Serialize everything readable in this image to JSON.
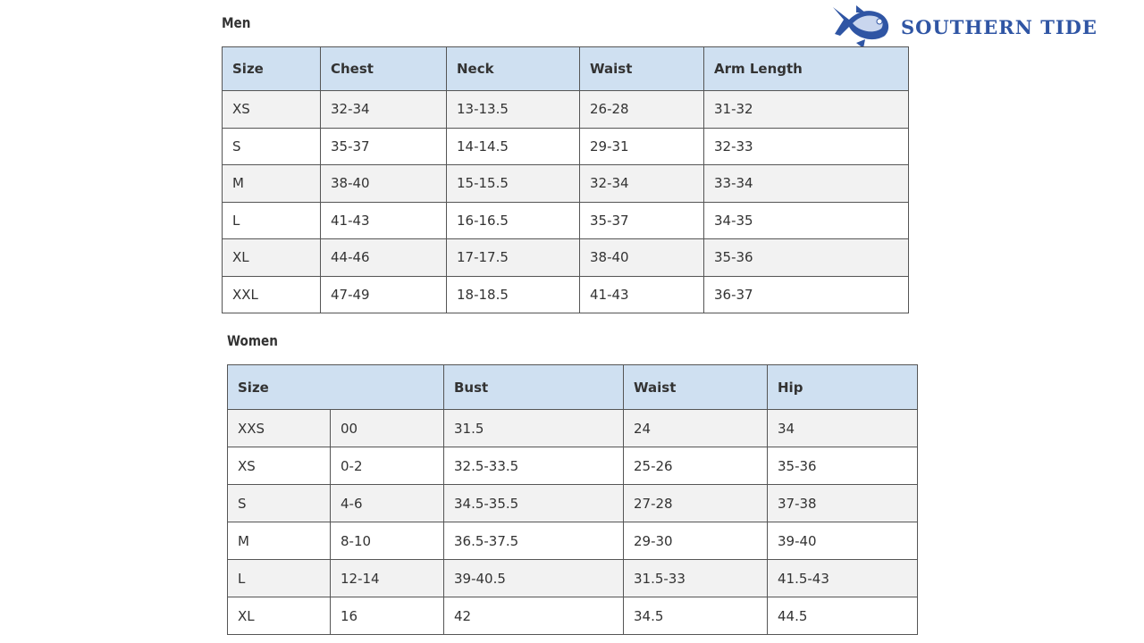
{
  "logo": {
    "text": "SOUTHERN TIDE",
    "color": "#2f55a4"
  },
  "men": {
    "title": "Men",
    "headers": [
      "Size",
      "Chest",
      "Neck",
      "Waist",
      "Arm Length"
    ],
    "rows": [
      [
        "XS",
        "32-34",
        "13-13.5",
        "26-28",
        "31-32"
      ],
      [
        "S",
        "35-37",
        "14-14.5",
        "29-31",
        "32-33"
      ],
      [
        "M",
        "38-40",
        "15-15.5",
        "32-34",
        "33-34"
      ],
      [
        "L",
        "41-43",
        "16-16.5",
        "35-37",
        "34-35"
      ],
      [
        "XL",
        "44-46",
        "17-17.5",
        "38-40",
        "35-36"
      ],
      [
        "XXL",
        "47-49",
        "18-18.5",
        "41-43",
        "36-37"
      ]
    ]
  },
  "women": {
    "title": "Women",
    "headers": [
      "Size",
      "Bust",
      "Waist",
      "Hip"
    ],
    "rows": [
      [
        "XXS",
        "00",
        "31.5",
        "24",
        "34"
      ],
      [
        "XS",
        "0-2",
        "32.5-33.5",
        "25-26",
        "35-36"
      ],
      [
        "S",
        "4-6",
        "34.5-35.5",
        "27-28",
        "37-38"
      ],
      [
        "M",
        "8-10",
        "36.5-37.5",
        "29-30",
        "39-40"
      ],
      [
        "L",
        "12-14",
        "39-40.5",
        "31.5-33",
        "41.5-43"
      ],
      [
        "XL",
        "16",
        "42",
        "34.5",
        "44.5"
      ]
    ]
  }
}
